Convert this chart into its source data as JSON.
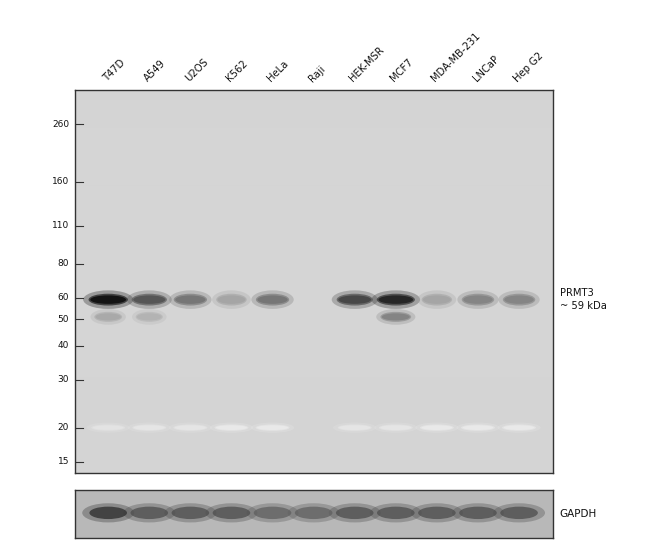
{
  "sample_labels": [
    "T47D",
    "A549",
    "U2OS",
    "K562",
    "HeLa",
    "Raji",
    "HEK-MSR",
    "MCF7",
    "MDA-MB-231",
    "LNCaP",
    "Hep G2"
  ],
  "mw_list": [
    260,
    160,
    110,
    80,
    60,
    50,
    40,
    30,
    20,
    15
  ],
  "mw_labels": [
    "260",
    "160",
    "110",
    "80",
    "60",
    "50",
    "40",
    "30",
    "20",
    "15"
  ],
  "prmt3_label": "PRMT3\n~ 59 kDa",
  "gapdh_label": "GAPDH",
  "main_bg": "#d4d4d4",
  "gapdh_bg": "#b8b8b8",
  "prmt3_main_intensity": [
    1.0,
    0.72,
    0.58,
    0.38,
    0.58,
    0.0,
    0.78,
    0.92,
    0.38,
    0.52,
    0.52
  ],
  "prmt3_lower_intensity": [
    0.45,
    0.4,
    0.0,
    0.0,
    0.0,
    0.0,
    0.0,
    0.65,
    0.0,
    0.0,
    0.0
  ],
  "faint_20kda": [
    0.16,
    0.14,
    0.14,
    0.12,
    0.12,
    0.0,
    0.14,
    0.14,
    0.12,
    0.12,
    0.12
  ],
  "gapdh_intensities": [
    0.88,
    0.78,
    0.78,
    0.78,
    0.72,
    0.72,
    0.78,
    0.78,
    0.78,
    0.78,
    0.78
  ]
}
